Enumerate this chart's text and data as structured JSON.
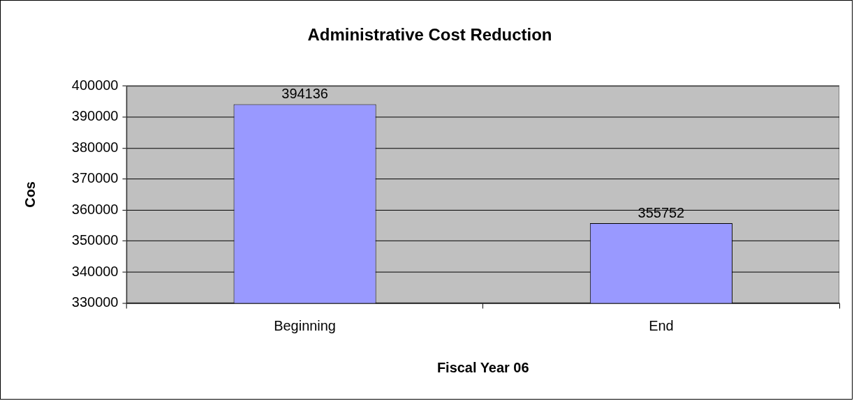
{
  "chart_data": {
    "type": "bar",
    "title": "Administrative Cost Reduction",
    "xlabel": "Fiscal Year 06",
    "ylabel": "Cos",
    "categories": [
      "Beginning",
      "End"
    ],
    "values": [
      394136,
      355752
    ],
    "color": "#9999ff",
    "ylim": [
      330000,
      400000
    ],
    "yticks": [
      330000,
      340000,
      350000,
      360000,
      370000,
      380000,
      390000,
      400000
    ],
    "grid": "y",
    "legend": false,
    "data_labels": true
  }
}
